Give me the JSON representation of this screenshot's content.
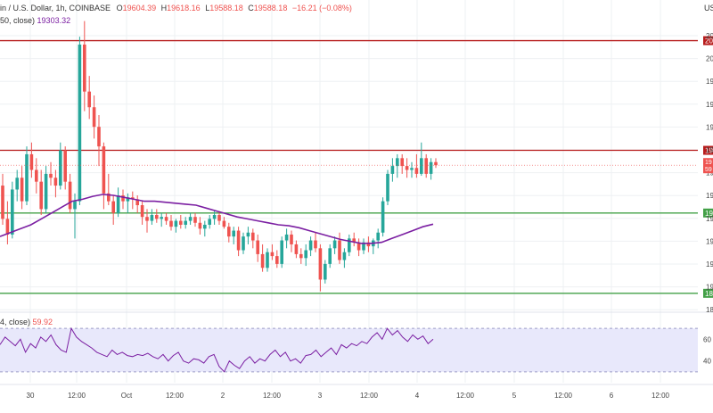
{
  "header": {
    "title": "in / U.S. Dollar, 1h, COINBASE",
    "o_label": "O",
    "o_value": "19604.39",
    "h_label": "H",
    "h_value": "19618.16",
    "l_label": "L",
    "l_value": "19588.18",
    "c_label": "C",
    "c_value": "19588.18",
    "change": "−16.21 (−0.08%)",
    "ma_label": "50, close)",
    "ma_value": "19303.32",
    "rsi_label": "4, close)",
    "rsi_value": "59.92",
    "currency_label": "US"
  },
  "colors": {
    "up": "#26a69a",
    "down": "#ef5350",
    "ma": "#7b1fa2",
    "resistance": "#b71c1c",
    "support": "#43a047",
    "rsi_band": "#e8e8fb"
  },
  "chart_data": {
    "type": "candlestick",
    "x_tick_labels": [
      "30",
      "12:00",
      "Oct",
      "12:00",
      "2",
      "12:00",
      "3",
      "12:00",
      "4",
      "12:00",
      "5",
      "12:00",
      "6",
      "12:00"
    ],
    "price_axis_labels": [
      "20",
      "20",
      "19",
      "19",
      "19",
      "19",
      "19",
      "19",
      "19",
      "19",
      "19",
      "19",
      "18"
    ],
    "horizontal_levels": [
      {
        "label": "20",
        "value": 20240,
        "color": "#b71c1c"
      },
      {
        "label": "19",
        "value": 19680,
        "color": "#b71c1c"
      },
      {
        "label": "19",
        "value": 19360,
        "color": "#43a047"
      },
      {
        "label": "18",
        "value": 18950,
        "color": "#43a047"
      }
    ],
    "price_badge": {
      "line1": "19",
      "line2": "59"
    },
    "ylim": [
      18890,
      20320
    ],
    "candles": [
      [
        19500,
        19560,
        19300,
        19330
      ],
      [
        19330,
        19420,
        19200,
        19250
      ],
      [
        19250,
        19520,
        19230,
        19480
      ],
      [
        19480,
        19580,
        19420,
        19540
      ],
      [
        19540,
        19600,
        19380,
        19420
      ],
      [
        19420,
        19700,
        19400,
        19660
      ],
      [
        19660,
        19720,
        19540,
        19580
      ],
      [
        19580,
        19640,
        19460,
        19520
      ],
      [
        19520,
        19580,
        19350,
        19380
      ],
      [
        19380,
        19600,
        19360,
        19560
      ],
      [
        19560,
        19620,
        19500,
        19540
      ],
      [
        19540,
        19580,
        19440,
        19500
      ],
      [
        19500,
        19720,
        19480,
        19680
      ],
      [
        19680,
        19700,
        19480,
        19520
      ],
      [
        19520,
        19560,
        19360,
        19380
      ],
      [
        19380,
        19460,
        19230,
        19420
      ],
      [
        19420,
        20260,
        19400,
        20220
      ],
      [
        20220,
        20340,
        19880,
        19980
      ],
      [
        19980,
        20060,
        19840,
        19900
      ],
      [
        19900,
        19960,
        19740,
        19800
      ],
      [
        19800,
        19860,
        19600,
        19700
      ],
      [
        19700,
        19720,
        19380,
        19460
      ],
      [
        19460,
        19560,
        19400,
        19420
      ],
      [
        19420,
        19450,
        19300,
        19360
      ],
      [
        19360,
        19490,
        19340,
        19450
      ],
      [
        19450,
        19480,
        19380,
        19420
      ],
      [
        19420,
        19460,
        19360,
        19440
      ],
      [
        19440,
        19470,
        19380,
        19430
      ],
      [
        19430,
        19450,
        19360,
        19400
      ],
      [
        19400,
        19420,
        19300,
        19340
      ],
      [
        19340,
        19380,
        19260,
        19320
      ],
      [
        19320,
        19380,
        19300,
        19350
      ],
      [
        19350,
        19380,
        19310,
        19330
      ],
      [
        19330,
        19360,
        19290,
        19340
      ],
      [
        19340,
        19360,
        19300,
        19320
      ],
      [
        19320,
        19350,
        19270,
        19290
      ],
      [
        19290,
        19330,
        19260,
        19320
      ],
      [
        19320,
        19350,
        19280,
        19300
      ],
      [
        19300,
        19340,
        19280,
        19320
      ],
      [
        19320,
        19360,
        19300,
        19340
      ],
      [
        19340,
        19360,
        19290,
        19310
      ],
      [
        19310,
        19340,
        19250,
        19280
      ],
      [
        19280,
        19320,
        19240,
        19300
      ],
      [
        19300,
        19350,
        19280,
        19330
      ],
      [
        19330,
        19370,
        19300,
        19350
      ],
      [
        19350,
        19370,
        19300,
        19320
      ],
      [
        19320,
        19340,
        19280,
        19290
      ],
      [
        19290,
        19310,
        19210,
        19240
      ],
      [
        19240,
        19290,
        19200,
        19270
      ],
      [
        19270,
        19290,
        19140,
        19170
      ],
      [
        19170,
        19260,
        19150,
        19240
      ],
      [
        19240,
        19290,
        19200,
        19260
      ],
      [
        19260,
        19280,
        19180,
        19220
      ],
      [
        19220,
        19250,
        19110,
        19150
      ],
      [
        19150,
        19200,
        19060,
        19080
      ],
      [
        19080,
        19180,
        19060,
        19160
      ],
      [
        19160,
        19200,
        19120,
        19140
      ],
      [
        19140,
        19170,
        19080,
        19100
      ],
      [
        19100,
        19240,
        19080,
        19220
      ],
      [
        19220,
        19280,
        19180,
        19250
      ],
      [
        19250,
        19270,
        19160,
        19200
      ],
      [
        19200,
        19220,
        19130,
        19150
      ],
      [
        19150,
        19180,
        19100,
        19130
      ],
      [
        19130,
        19200,
        19090,
        19170
      ],
      [
        19170,
        19240,
        19140,
        19220
      ],
      [
        19220,
        19260,
        19160,
        19180
      ],
      [
        19180,
        19200,
        18960,
        19020
      ],
      [
        19020,
        19120,
        19000,
        19100
      ],
      [
        19100,
        19200,
        19080,
        19180
      ],
      [
        19180,
        19240,
        19150,
        19220
      ],
      [
        19220,
        19260,
        19100,
        19120
      ],
      [
        19120,
        19180,
        19080,
        19160
      ],
      [
        19160,
        19250,
        19140,
        19230
      ],
      [
        19230,
        19260,
        19190,
        19210
      ],
      [
        19210,
        19230,
        19140,
        19170
      ],
      [
        19170,
        19230,
        19150,
        19210
      ],
      [
        19210,
        19240,
        19160,
        19190
      ],
      [
        19190,
        19230,
        19150,
        19220
      ],
      [
        19220,
        19280,
        19180,
        19260
      ],
      [
        19260,
        19440,
        19240,
        19420
      ],
      [
        19420,
        19580,
        19400,
        19560
      ],
      [
        19560,
        19640,
        19520,
        19600
      ],
      [
        19600,
        19660,
        19540,
        19640
      ],
      [
        19640,
        19660,
        19560,
        19600
      ],
      [
        19600,
        19640,
        19540,
        19580
      ],
      [
        19580,
        19620,
        19540,
        19590
      ],
      [
        19590,
        19660,
        19540,
        19560
      ],
      [
        19560,
        19720,
        19550,
        19640
      ],
      [
        19640,
        19660,
        19540,
        19560
      ],
      [
        19560,
        19640,
        19530,
        19620
      ],
      [
        19620,
        19640,
        19590,
        19604
      ]
    ],
    "ma50": [
      19240,
      19260,
      19280,
      19300,
      19330,
      19360,
      19390,
      19420,
      19430,
      19445,
      19455,
      19450,
      19440,
      19430,
      19420,
      19420,
      19415,
      19410,
      19405,
      19400,
      19385,
      19370,
      19355,
      19340,
      19330,
      19320,
      19310,
      19300,
      19295,
      19285,
      19270,
      19255,
      19240,
      19225,
      19215,
      19205,
      19205,
      19210,
      19230,
      19250,
      19270,
      19290,
      19303
    ],
    "rsi": {
      "range": [
        20,
        80
      ],
      "band": [
        30,
        70
      ],
      "ticks": [
        "60",
        "40"
      ],
      "values": [
        55,
        62,
        58,
        54,
        60,
        48,
        56,
        52,
        62,
        58,
        64,
        55,
        50,
        48,
        70,
        62,
        58,
        55,
        52,
        48,
        46,
        44,
        50,
        46,
        48,
        45,
        44,
        46,
        45,
        47,
        44,
        42,
        46,
        40,
        45,
        48,
        40,
        38,
        42,
        41,
        38,
        44,
        46,
        35,
        30,
        40,
        36,
        33,
        40,
        44,
        38,
        42,
        40,
        46,
        50,
        44,
        48,
        40,
        42,
        38,
        45,
        46,
        50,
        44,
        48,
        52,
        46,
        55,
        52,
        56,
        54,
        58,
        56,
        62,
        66,
        60,
        70,
        64,
        68,
        62,
        58,
        64,
        60,
        63,
        56,
        60
      ]
    }
  }
}
